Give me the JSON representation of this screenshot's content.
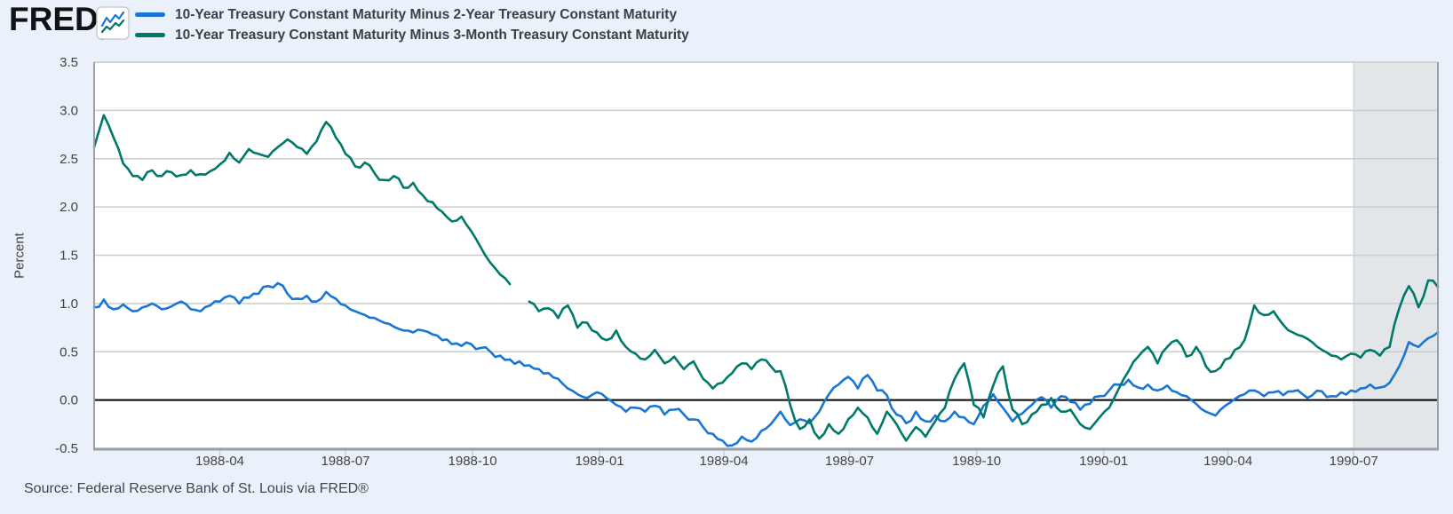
{
  "header": {
    "logo": {
      "text": "FRED",
      "registered": "®"
    },
    "legend_note": "legend swatch colors mirror chart_data.series colors"
  },
  "chart_data": {
    "type": "line",
    "title": "",
    "xlabel": "",
    "ylabel": "Percent",
    "ylim": [
      -0.5,
      3.5
    ],
    "x_start": "1988-01-01",
    "x_end": "1990-09-01",
    "x_range_days": 973,
    "sample_interval_days": 7,
    "grid": "horizontal-only",
    "legend_position": "top-left",
    "zero_line_value": 0.0,
    "recession_band": {
      "start_day": 912,
      "end_day": 973,
      "start_label": "1990-07"
    },
    "y_ticks": [
      {
        "value": 3.5,
        "label": "3.5"
      },
      {
        "value": 3.0,
        "label": "3.0"
      },
      {
        "value": 2.5,
        "label": "2.5"
      },
      {
        "value": 2.0,
        "label": "2.0"
      },
      {
        "value": 1.5,
        "label": "1.5"
      },
      {
        "value": 1.0,
        "label": "1.0"
      },
      {
        "value": 0.5,
        "label": "0.5"
      },
      {
        "value": 0.0,
        "label": "0.0"
      },
      {
        "value": -0.5,
        "label": "-0.5"
      }
    ],
    "x_ticks": [
      {
        "day": 91,
        "label": "1988-04"
      },
      {
        "day": 182,
        "label": "1988-07"
      },
      {
        "day": 274,
        "label": "1988-10"
      },
      {
        "day": 366,
        "label": "1989-01"
      },
      {
        "day": 456,
        "label": "1989-04"
      },
      {
        "day": 547,
        "label": "1989-07"
      },
      {
        "day": 639,
        "label": "1989-10"
      },
      {
        "day": 731,
        "label": "1990-01"
      },
      {
        "day": 821,
        "label": "1990-04"
      },
      {
        "day": 912,
        "label": "1990-07"
      }
    ],
    "style": {
      "background": "#eaf1fa",
      "plot_background": "#ffffff",
      "gridline": "#cccccc",
      "zero_line": "#000000",
      "recession_fill": "#e3e6e8",
      "recession_edge": "#c9cccf",
      "plot_border_side": "#9aa0a5",
      "plot_border_top": "#cfcfcf",
      "plot_border_bottom": "#9aa0a5",
      "tick_mark": "#c4cfdf",
      "axis_text": "#444444"
    },
    "series": [
      {
        "name": "10-Year Treasury Constant Maturity Minus 2-Year Treasury Constant Maturity",
        "color": "#1976d2",
        "values": [
          0.96,
          1.04,
          0.94,
          0.99,
          0.92,
          0.96,
          1.0,
          0.94,
          0.97,
          1.02,
          0.94,
          0.92,
          0.98,
          1.02,
          1.08,
          1.0,
          1.06,
          1.1,
          1.18,
          1.21,
          1.1,
          1.05,
          1.08,
          1.02,
          1.12,
          1.05,
          0.98,
          0.92,
          0.88,
          0.85,
          0.8,
          0.76,
          0.72,
          0.7,
          0.72,
          0.68,
          0.62,
          0.58,
          0.56,
          0.58,
          0.54,
          0.5,
          0.46,
          0.42,
          0.4,
          0.36,
          0.32,
          0.28,
          0.22,
          0.12,
          0.06,
          0.02,
          0.08,
          0.02,
          -0.05,
          -0.12,
          -0.08,
          -0.12,
          -0.06,
          -0.15,
          -0.1,
          -0.15,
          -0.2,
          -0.28,
          -0.35,
          -0.42,
          -0.47,
          -0.38,
          -0.43,
          -0.32,
          -0.25,
          -0.12,
          -0.26,
          -0.2,
          -0.24,
          -0.12,
          0.06,
          0.16,
          0.24,
          0.12,
          0.26,
          0.1,
          0.05,
          -0.15,
          -0.24,
          -0.12,
          -0.22,
          -0.16,
          -0.22,
          -0.12,
          -0.18,
          -0.25,
          -0.06,
          0.06,
          -0.08,
          -0.22,
          -0.14,
          -0.05,
          0.03,
          -0.08,
          0.04,
          -0.02,
          -0.1,
          -0.04,
          0.04,
          0.1,
          0.16,
          0.21,
          0.13,
          0.16,
          0.1,
          0.15,
          0.08,
          0.04,
          -0.04,
          -0.12,
          -0.16,
          -0.06,
          0.01,
          0.06,
          0.1,
          0.04,
          0.08,
          0.05,
          0.09,
          0.06,
          0.05,
          0.09,
          0.04,
          0.08,
          0.1,
          0.12,
          0.16,
          0.13,
          0.18,
          0.35,
          0.6,
          0.55,
          0.64,
          0.7
        ]
      },
      {
        "name": "10-Year Treasury Constant Maturity Minus 3-Month Treasury Constant Maturity",
        "color": "#00796b",
        "values": [
          2.62,
          2.95,
          2.72,
          2.45,
          2.32,
          2.28,
          2.38,
          2.32,
          2.36,
          2.33,
          2.38,
          2.34,
          2.37,
          2.44,
          2.56,
          2.46,
          2.6,
          2.55,
          2.52,
          2.62,
          2.7,
          2.62,
          2.55,
          2.68,
          2.88,
          2.72,
          2.55,
          2.42,
          2.46,
          2.35,
          2.28,
          2.32,
          2.2,
          2.25,
          2.12,
          2.05,
          1.95,
          1.85,
          1.9,
          1.75,
          1.58,
          1.42,
          1.3,
          1.2,
          null,
          1.02,
          0.92,
          0.95,
          0.85,
          0.98,
          0.75,
          0.8,
          0.7,
          0.62,
          0.72,
          0.55,
          0.48,
          0.42,
          0.52,
          0.38,
          0.45,
          0.32,
          0.4,
          0.22,
          0.12,
          0.18,
          0.28,
          0.38,
          0.32,
          0.42,
          0.35,
          0.3,
          -0.05,
          -0.3,
          -0.2,
          -0.4,
          -0.25,
          -0.35,
          -0.2,
          -0.08,
          -0.18,
          -0.35,
          -0.12,
          -0.25,
          -0.42,
          -0.28,
          -0.38,
          -0.22,
          -0.08,
          0.22,
          0.38,
          -0.05,
          -0.18,
          0.15,
          0.35,
          -0.1,
          -0.25,
          -0.15,
          -0.05,
          0.02,
          -0.12,
          -0.1,
          -0.25,
          -0.3,
          -0.18,
          -0.08,
          0.12,
          0.3,
          0.45,
          0.55,
          0.38,
          0.55,
          0.62,
          0.45,
          0.55,
          0.35,
          0.3,
          0.42,
          0.52,
          0.62,
          0.98,
          0.88,
          0.92,
          0.78,
          0.7,
          0.66,
          0.6,
          0.52,
          0.46,
          0.42,
          0.48,
          0.44,
          0.52,
          0.46,
          0.55,
          0.95,
          1.18,
          0.96,
          1.24,
          1.17
        ]
      }
    ]
  },
  "footer": {
    "source": "Source: Federal Reserve Bank of St. Louis via FRED®"
  }
}
